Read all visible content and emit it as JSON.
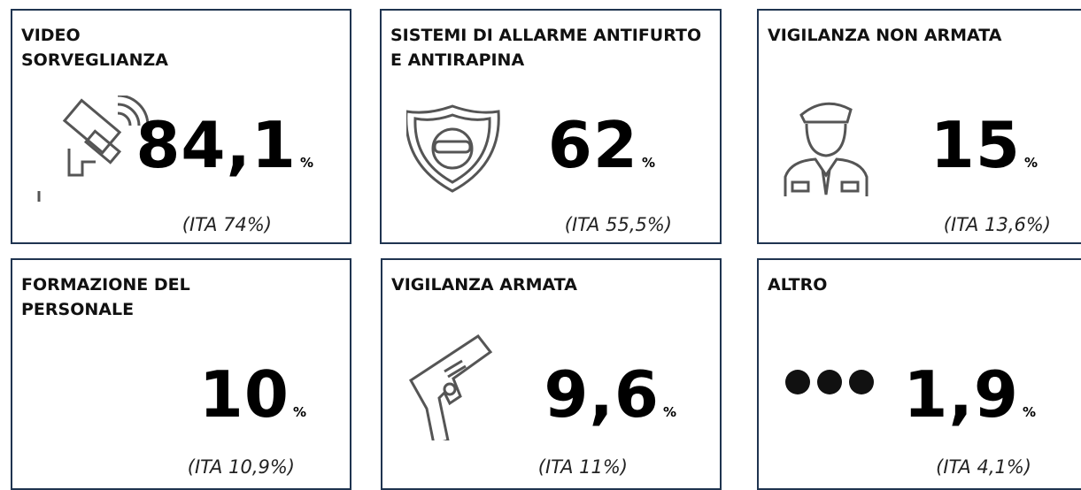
{
  "cards": [
    {
      "title": "Video sorveglianza",
      "value": "84,1",
      "unit": "%",
      "comparison": "(ITA 74%)"
    },
    {
      "title": "Sistemi di allarme antifurto e antirapina",
      "value": "62",
      "unit": "%",
      "comparison": "(ITA 55,5%)"
    },
    {
      "title": "Vigilanza non armata",
      "value": "15",
      "unit": "%",
      "comparison": "(ITA 13,6%)"
    },
    {
      "title": "Formazione del personale",
      "value": "10",
      "unit": "%",
      "comparison": "(ITA 10,9%)"
    },
    {
      "title": "Vigilanza armata",
      "value": "9,6",
      "unit": "%",
      "comparison": "(ITA 11%)"
    },
    {
      "title": "Altro",
      "value": "1,9",
      "unit": "%",
      "comparison": "(ITA 4,1%)"
    }
  ]
}
